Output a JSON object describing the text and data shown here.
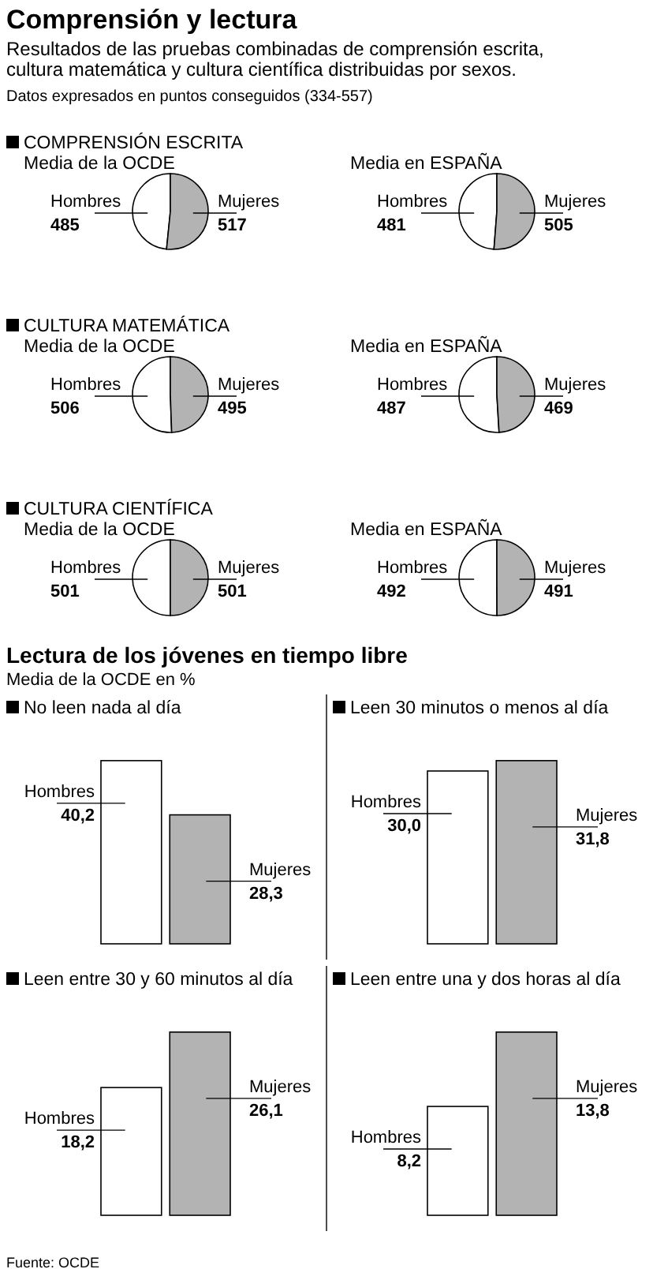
{
  "chart_data": [
    {
      "type": "other",
      "title": "Comprensión y lectura",
      "subtitle": "Resultados de las pruebas combinadas de comprensión escrita, cultura matemática y cultura científica distribuidas por sexos.",
      "annotations": [
        "Datos expresados en puntos conseguidos (334-557)"
      ]
    },
    {
      "type": "pie",
      "title": "COMPRENSIÓN ESCRITA",
      "subtitle": "Media de la OCDE",
      "categories": [
        "Hombres",
        "Mujeres"
      ],
      "values": [
        485,
        517
      ],
      "colors": [
        "#ffffff",
        "#b3b3b3"
      ],
      "data_labels": true
    },
    {
      "type": "pie",
      "subtitle": "Media en ESPAÑA",
      "categories": [
        "Hombres",
        "Mujeres"
      ],
      "values": [
        481,
        505
      ],
      "colors": [
        "#ffffff",
        "#b3b3b3"
      ],
      "data_labels": true
    },
    {
      "type": "pie",
      "title": "CULTURA MATEMÁTICA",
      "subtitle": "Media de la OCDE",
      "categories": [
        "Hombres",
        "Mujeres"
      ],
      "values": [
        506,
        495
      ],
      "colors": [
        "#ffffff",
        "#b3b3b3"
      ],
      "data_labels": true
    },
    {
      "type": "pie",
      "subtitle": "Media en ESPAÑA",
      "categories": [
        "Hombres",
        "Mujeres"
      ],
      "values": [
        487,
        469
      ],
      "colors": [
        "#ffffff",
        "#b3b3b3"
      ],
      "data_labels": true
    },
    {
      "type": "pie",
      "title": "CULTURA CIENTÍFICA",
      "subtitle": "Media de la OCDE",
      "categories": [
        "Hombres",
        "Mujeres"
      ],
      "values": [
        501,
        501
      ],
      "colors": [
        "#ffffff",
        "#b3b3b3"
      ],
      "data_labels": true
    },
    {
      "type": "pie",
      "subtitle": "Media en ESPAÑA",
      "categories": [
        "Hombres",
        "Mujeres"
      ],
      "values": [
        492,
        491
      ],
      "colors": [
        "#ffffff",
        "#b3b3b3"
      ],
      "data_labels": true
    },
    {
      "type": "other",
      "title": "Lectura de los jóvenes en tiempo libre",
      "subtitle": "Media de la OCDE en %"
    },
    {
      "type": "bar",
      "title": "No leen nada al día",
      "categories": [
        null
      ],
      "series": [
        {
          "name": "Hombres",
          "color": "#ffffff",
          "values": [
            40.2
          ],
          "value_labels": [
            "40,2"
          ]
        },
        {
          "name": "Mujeres",
          "color": "#b3b3b3",
          "values": [
            28.3
          ],
          "value_labels": [
            "28,3"
          ]
        }
      ]
    },
    {
      "type": "bar",
      "title": "Leen 30 minutos o menos al día",
      "categories": [
        null
      ],
      "series": [
        {
          "name": "Hombres",
          "color": "#ffffff",
          "values": [
            30.0
          ],
          "value_labels": [
            "30,0"
          ]
        },
        {
          "name": "Mujeres",
          "color": "#b3b3b3",
          "values": [
            31.8
          ],
          "value_labels": [
            "31,8"
          ]
        }
      ]
    },
    {
      "type": "bar",
      "title": "Leen entre 30 y 60 minutos al día",
      "categories": [
        null
      ],
      "series": [
        {
          "name": "Hombres",
          "color": "#ffffff",
          "values": [
            18.2
          ],
          "value_labels": [
            "18,2"
          ]
        },
        {
          "name": "Mujeres",
          "color": "#b3b3b3",
          "values": [
            26.1
          ],
          "value_labels": [
            "26,1"
          ]
        }
      ]
    },
    {
      "type": "bar",
      "title": "Leen entre una y dos horas al día",
      "categories": [
        null
      ],
      "series": [
        {
          "name": "Hombres",
          "color": "#ffffff",
          "values": [
            8.2
          ],
          "value_labels": [
            "8,2"
          ]
        },
        {
          "name": "Mujeres",
          "color": "#b3b3b3",
          "values": [
            13.8
          ],
          "value_labels": [
            "13,8"
          ]
        }
      ],
      "annotations": [
        "Fuente: OCDE"
      ]
    }
  ]
}
